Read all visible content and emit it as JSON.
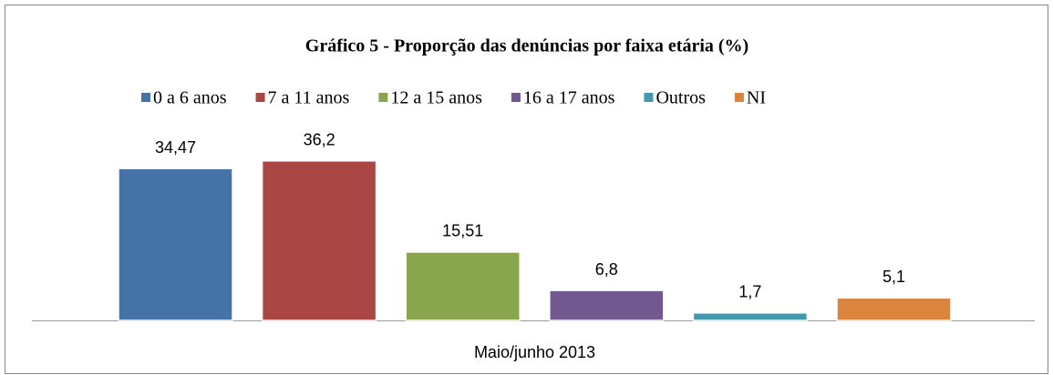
{
  "chart_data": {
    "type": "bar",
    "title": "Gráfico 5 - Proporção das denúncias por faixa etária (%)",
    "categories": [
      "Maio/junho 2013"
    ],
    "series": [
      {
        "name": "0 a 6 anos",
        "color": "#4572a7",
        "values": [
          34.47
        ],
        "value_labels": [
          "34,47"
        ]
      },
      {
        "name": "7 a 11 anos",
        "color": "#aa4643",
        "values": [
          36.2
        ],
        "value_labels": [
          "36,2"
        ]
      },
      {
        "name": "12 a 15 anos",
        "color": "#89a54e",
        "values": [
          15.51
        ],
        "value_labels": [
          "15,51"
        ]
      },
      {
        "name": "16 a 17 anos",
        "color": "#71588f",
        "values": [
          6.8
        ],
        "value_labels": [
          "6,8"
        ]
      },
      {
        "name": "Outros",
        "color": "#4198af",
        "values": [
          1.7
        ],
        "value_labels": [
          "1,7"
        ]
      },
      {
        "name": "NI",
        "color": "#db843d",
        "values": [
          5.1
        ],
        "value_labels": [
          "5,1"
        ]
      }
    ]
  }
}
